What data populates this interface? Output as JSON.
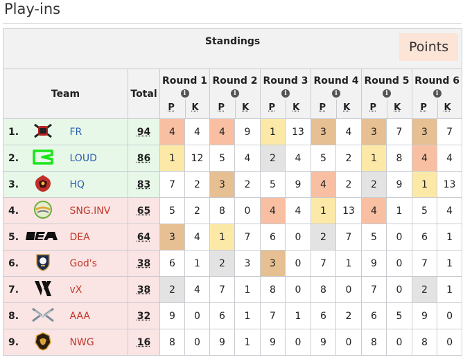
{
  "page": {
    "heading": "Play-ins"
  },
  "table": {
    "title": "Standings",
    "points_label": "Points",
    "col_team": "Team",
    "col_total": "Total",
    "col_p": "P",
    "col_k": "K",
    "info_glyph": "i",
    "rounds": [
      "Round 1",
      "Round 2",
      "Round 3",
      "Round 4",
      "Round 5",
      "Round 6"
    ],
    "colors": {
      "qualified_row": "#e8f8e8",
      "eliminated_row": "#fbe4e4",
      "place_1": "#fce9a8",
      "place_2": "#e3e3e3",
      "place_3": "#e6bf92",
      "place_4": "#f9bfa2"
    },
    "rows": [
      {
        "rank": "1.",
        "team": "FR",
        "total": "94",
        "status": "qualified",
        "logo": "fr-logo-icon",
        "results": [
          [
            "4",
            "4"
          ],
          [
            "4",
            "9"
          ],
          [
            "1",
            "13"
          ],
          [
            "3",
            "4"
          ],
          [
            "3",
            "7"
          ],
          [
            "3",
            "7"
          ]
        ]
      },
      {
        "rank": "2.",
        "team": "LOUD",
        "total": "86",
        "status": "qualified",
        "logo": "loud-logo-icon",
        "results": [
          [
            "1",
            "12"
          ],
          [
            "5",
            "4"
          ],
          [
            "2",
            "4"
          ],
          [
            "5",
            "2"
          ],
          [
            "1",
            "8"
          ],
          [
            "4",
            "4"
          ]
        ]
      },
      {
        "rank": "3.",
        "team": "HQ",
        "total": "83",
        "status": "qualified",
        "logo": "hq-logo-icon",
        "results": [
          [
            "7",
            "2"
          ],
          [
            "3",
            "2"
          ],
          [
            "5",
            "9"
          ],
          [
            "4",
            "2"
          ],
          [
            "2",
            "9"
          ],
          [
            "1",
            "13"
          ]
        ]
      },
      {
        "rank": "4.",
        "team": "SNG.INV",
        "total": "65",
        "status": "eliminated",
        "logo": "sng-logo-icon",
        "results": [
          [
            "5",
            "2"
          ],
          [
            "8",
            "0"
          ],
          [
            "4",
            "4"
          ],
          [
            "1",
            "13"
          ],
          [
            "4",
            "1"
          ],
          [
            "5",
            "4"
          ]
        ]
      },
      {
        "rank": "5.",
        "team": "DEA",
        "total": "64",
        "status": "eliminated",
        "logo": "dea-logo-icon",
        "results": [
          [
            "3",
            "4"
          ],
          [
            "1",
            "7"
          ],
          [
            "6",
            "0"
          ],
          [
            "2",
            "7"
          ],
          [
            "5",
            "0"
          ],
          [
            "6",
            "1"
          ]
        ]
      },
      {
        "rank": "6.",
        "team": "God's",
        "total": "38",
        "status": "eliminated",
        "logo": "gods-logo-icon",
        "results": [
          [
            "6",
            "1"
          ],
          [
            "2",
            "3"
          ],
          [
            "3",
            "0"
          ],
          [
            "7",
            "1"
          ],
          [
            "9",
            "0"
          ],
          [
            "7",
            "1"
          ]
        ]
      },
      {
        "rank": "7.",
        "team": "vX",
        "total": "38",
        "status": "eliminated",
        "logo": "vx-logo-icon",
        "results": [
          [
            "2",
            "4"
          ],
          [
            "7",
            "1"
          ],
          [
            "8",
            "0"
          ],
          [
            "8",
            "0"
          ],
          [
            "7",
            "0"
          ],
          [
            "2",
            "1"
          ]
        ]
      },
      {
        "rank": "8.",
        "team": "AAA",
        "total": "32",
        "status": "eliminated",
        "logo": "aaa-logo-icon",
        "results": [
          [
            "9",
            "0"
          ],
          [
            "6",
            "1"
          ],
          [
            "7",
            "1"
          ],
          [
            "6",
            "2"
          ],
          [
            "6",
            "5"
          ],
          [
            "9",
            "0"
          ]
        ]
      },
      {
        "rank": "9.",
        "team": "NWG",
        "total": "16",
        "status": "eliminated",
        "logo": "nwg-logo-icon",
        "results": [
          [
            "8",
            "0"
          ],
          [
            "9",
            "1"
          ],
          [
            "9",
            "0"
          ],
          [
            "9",
            "0"
          ],
          [
            "8",
            "0"
          ],
          [
            "8",
            "0"
          ]
        ]
      }
    ]
  }
}
